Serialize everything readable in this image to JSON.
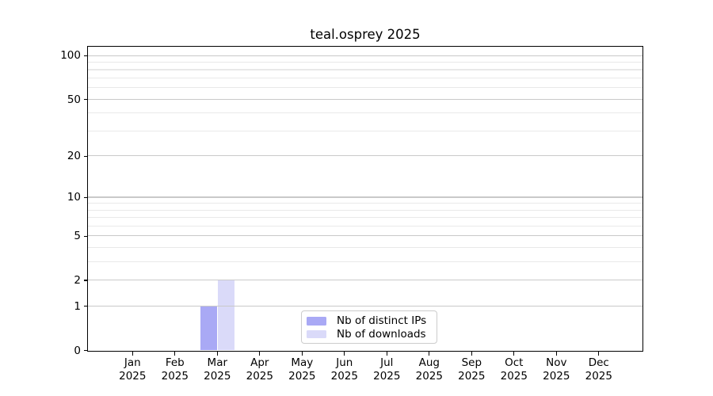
{
  "chart_data": {
    "type": "bar",
    "title": "teal.osprey 2025",
    "categories": [
      "Jan",
      "Feb",
      "Mar",
      "Apr",
      "May",
      "Jun",
      "Jul",
      "Aug",
      "Sep",
      "Oct",
      "Nov",
      "Dec"
    ],
    "x_tick_year": "2025",
    "series": [
      {
        "name": "Nb of distinct IPs",
        "color": "#a9a9f5",
        "values": [
          0,
          0,
          1,
          0,
          0,
          0,
          0,
          0,
          0,
          0,
          0,
          0
        ]
      },
      {
        "name": "Nb of downloads",
        "color": "#dadaf9",
        "values": [
          0,
          0,
          2,
          0,
          0,
          0,
          0,
          0,
          0,
          0,
          0,
          0
        ]
      }
    ],
    "yscale": "log1p",
    "ylim": [
      0,
      115
    ],
    "y_major_ticks": [
      0,
      1,
      2,
      5,
      10,
      20,
      50,
      100
    ],
    "y_minor_gridlines": [
      3,
      4,
      6,
      7,
      8,
      9,
      30,
      40,
      60,
      70,
      80,
      90
    ],
    "grid": true,
    "legend_position": "lower center",
    "colors": {
      "background": "#ffffff",
      "spine": "#000000",
      "major_grid": "#c9c9c9",
      "minor_grid": "#e9e9e9",
      "legend_border": "#cccccc",
      "text": "#000000"
    }
  }
}
